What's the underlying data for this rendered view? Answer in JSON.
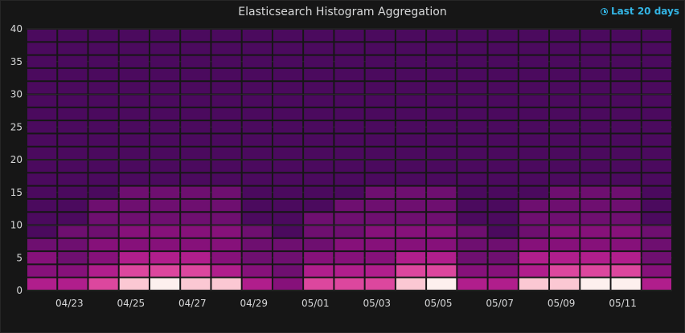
{
  "panel": {
    "title": "Elasticsearch Histogram Aggregation",
    "time_range_label": "Last 20 days",
    "time_range_icon": "clock-icon"
  },
  "chart_data": {
    "type": "heatmap",
    "title": "Elasticsearch Histogram Aggregation",
    "x_tick_labels": [
      "04/23",
      "04/25",
      "04/27",
      "04/29",
      "05/01",
      "05/03",
      "05/05",
      "05/07",
      "05/09",
      "05/11"
    ],
    "y_tick_labels": [
      "0",
      "5",
      "10",
      "15",
      "20",
      "25",
      "30",
      "35",
      "40"
    ],
    "ylim": [
      0,
      40
    ],
    "y_bucket_size": 2,
    "x_start_day": "04/22",
    "columns": [
      {
        "day": "04/22",
        "values": [
          4,
          3,
          3,
          2,
          1,
          1,
          1,
          1,
          1,
          1,
          1,
          1,
          1,
          1,
          1,
          1,
          1,
          1,
          1,
          1
        ]
      },
      {
        "day": "04/23",
        "values": [
          4,
          3,
          2,
          2,
          2,
          1,
          1,
          1,
          1,
          1,
          1,
          1,
          1,
          1,
          1,
          1,
          1,
          1,
          1,
          1
        ]
      },
      {
        "day": "04/24",
        "values": [
          5,
          4,
          3,
          3,
          2,
          2,
          2,
          1,
          1,
          1,
          1,
          1,
          1,
          1,
          1,
          1,
          1,
          1,
          1,
          1
        ]
      },
      {
        "day": "04/25",
        "values": [
          6,
          5,
          4,
          3,
          3,
          2,
          2,
          2,
          1,
          1,
          1,
          1,
          1,
          1,
          1,
          1,
          1,
          1,
          1,
          1
        ]
      },
      {
        "day": "04/26",
        "values": [
          7,
          5,
          4,
          3,
          3,
          2,
          2,
          2,
          1,
          1,
          1,
          1,
          1,
          1,
          1,
          1,
          1,
          1,
          1,
          1
        ]
      },
      {
        "day": "04/27",
        "values": [
          6,
          5,
          4,
          3,
          3,
          2,
          2,
          2,
          1,
          1,
          1,
          1,
          1,
          1,
          1,
          1,
          1,
          1,
          1,
          1
        ]
      },
      {
        "day": "04/28",
        "values": [
          6,
          4,
          3,
          3,
          3,
          2,
          2,
          2,
          1,
          1,
          1,
          1,
          1,
          1,
          1,
          1,
          1,
          1,
          1,
          1
        ]
      },
      {
        "day": "04/29",
        "values": [
          4,
          3,
          2,
          2,
          2,
          1,
          1,
          1,
          1,
          1,
          1,
          1,
          1,
          1,
          1,
          1,
          1,
          1,
          1,
          1
        ]
      },
      {
        "day": "04/30",
        "values": [
          3,
          2,
          2,
          2,
          1,
          1,
          1,
          1,
          1,
          1,
          1,
          1,
          1,
          1,
          1,
          1,
          1,
          1,
          1,
          1
        ]
      },
      {
        "day": "05/01",
        "values": [
          5,
          4,
          3,
          2,
          2,
          2,
          1,
          1,
          1,
          1,
          1,
          1,
          1,
          1,
          1,
          1,
          1,
          1,
          1,
          1
        ]
      },
      {
        "day": "05/02",
        "values": [
          5,
          4,
          3,
          3,
          2,
          2,
          2,
          1,
          1,
          1,
          1,
          1,
          1,
          1,
          1,
          1,
          1,
          1,
          1,
          1
        ]
      },
      {
        "day": "05/03",
        "values": [
          5,
          4,
          3,
          3,
          3,
          2,
          2,
          2,
          1,
          1,
          1,
          1,
          1,
          1,
          1,
          1,
          1,
          1,
          1,
          1
        ]
      },
      {
        "day": "05/04",
        "values": [
          6,
          5,
          4,
          3,
          3,
          2,
          2,
          2,
          1,
          1,
          1,
          1,
          1,
          1,
          1,
          1,
          1,
          1,
          1,
          1
        ]
      },
      {
        "day": "05/05",
        "values": [
          7,
          5,
          4,
          3,
          3,
          2,
          2,
          2,
          1,
          1,
          1,
          1,
          1,
          1,
          1,
          1,
          1,
          1,
          1,
          1
        ]
      },
      {
        "day": "05/06",
        "values": [
          4,
          3,
          2,
          2,
          2,
          1,
          1,
          1,
          1,
          1,
          1,
          1,
          1,
          1,
          1,
          1,
          1,
          1,
          1,
          1
        ]
      },
      {
        "day": "05/07",
        "values": [
          4,
          3,
          2,
          2,
          1,
          1,
          1,
          1,
          1,
          1,
          1,
          1,
          1,
          1,
          1,
          1,
          1,
          1,
          1,
          1
        ]
      },
      {
        "day": "05/08",
        "values": [
          6,
          4,
          4,
          3,
          2,
          2,
          2,
          1,
          1,
          1,
          1,
          1,
          1,
          1,
          1,
          1,
          1,
          1,
          1,
          1
        ]
      },
      {
        "day": "05/09",
        "values": [
          6,
          5,
          4,
          3,
          3,
          2,
          2,
          2,
          1,
          1,
          1,
          1,
          1,
          1,
          1,
          1,
          1,
          1,
          1,
          1
        ]
      },
      {
        "day": "05/10",
        "values": [
          7,
          5,
          4,
          3,
          3,
          2,
          2,
          2,
          1,
          1,
          1,
          1,
          1,
          1,
          1,
          1,
          1,
          1,
          1,
          1
        ]
      },
      {
        "day": "05/11",
        "values": [
          7,
          5,
          4,
          3,
          3,
          2,
          2,
          2,
          1,
          1,
          1,
          1,
          1,
          1,
          1,
          1,
          1,
          1,
          1,
          1
        ]
      },
      {
        "day": "05/12",
        "values": [
          4,
          3,
          2,
          2,
          2,
          1,
          1,
          1,
          1,
          1,
          1,
          1,
          1,
          1,
          1,
          1,
          1,
          1,
          1,
          1
        ]
      }
    ],
    "color_scale": [
      "#3d0d5c",
      "#4b0a5e",
      "#5c0c66",
      "#6e0f70",
      "#86117a",
      "#b01e8c",
      "#dc479e",
      "#f08bb6",
      "#fbc8d3",
      "#fdf0ee"
    ],
    "value_max": 7,
    "grid": true,
    "legend": "none"
  },
  "colors": {
    "background": "#161616",
    "grid": "#2a2a2a",
    "text": "#d8d9da",
    "accent": "#33b5e5"
  }
}
